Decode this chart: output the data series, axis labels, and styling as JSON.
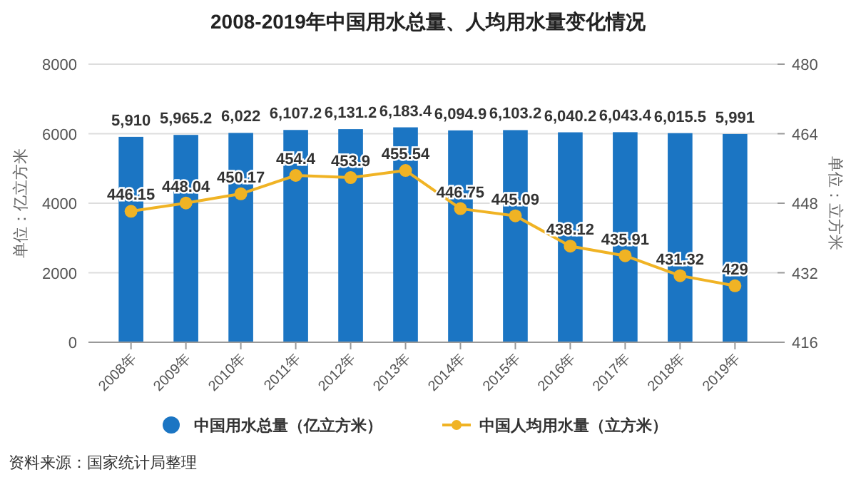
{
  "chart_data": {
    "type": "bar",
    "title": "2008-2019年中国用水总量、人均用水量变化情况",
    "ylabel": "单位：亿立方米",
    "y2label": "单位：立方米",
    "categories": [
      "2008年",
      "2009年",
      "2010年",
      "2011年",
      "2012年",
      "2013年",
      "2014年",
      "2015年",
      "2016年",
      "2017年",
      "2018年",
      "2019年"
    ],
    "series": [
      {
        "name": "中国用水总量（亿立方米）",
        "color": "#1b75c3",
        "values": [
          5910,
          5965.2,
          6022,
          6107.2,
          6131.2,
          6183.4,
          6094.9,
          6103.2,
          6040.2,
          6043.4,
          6015.5,
          5991
        ],
        "value_labels": [
          "5,910",
          "5,965.2",
          "6,022",
          "6,107.2",
          "6,131.2",
          "6,183.4",
          "6,094.9",
          "6,103.2",
          "6,040.2",
          "6,043.4",
          "6,015.5",
          "5,991"
        ]
      },
      {
        "name": "中国人均用水量（立方米）",
        "type": "line",
        "axis": "y2",
        "color": "#f0b324",
        "marker": "circle",
        "values": [
          446.15,
          448.04,
          450.17,
          454.4,
          453.9,
          455.54,
          446.75,
          445.09,
          438.12,
          435.91,
          431.32,
          429
        ],
        "value_labels": [
          "446.15",
          "448.04",
          "450.17",
          "454.4",
          "453.9",
          "455.54",
          "446.75",
          "445.09",
          "438.12",
          "435.91",
          "431.32",
          "429"
        ]
      }
    ],
    "ylim": [
      0,
      8000
    ],
    "yticks": [
      0,
      2000,
      4000,
      6000,
      8000
    ],
    "y2lim": [
      416,
      480
    ],
    "y2ticks": [
      416,
      432,
      448,
      464,
      480
    ],
    "grid": "y",
    "legend": "bottom",
    "annotations": [
      "资料来源：国家统计局整理"
    ]
  }
}
